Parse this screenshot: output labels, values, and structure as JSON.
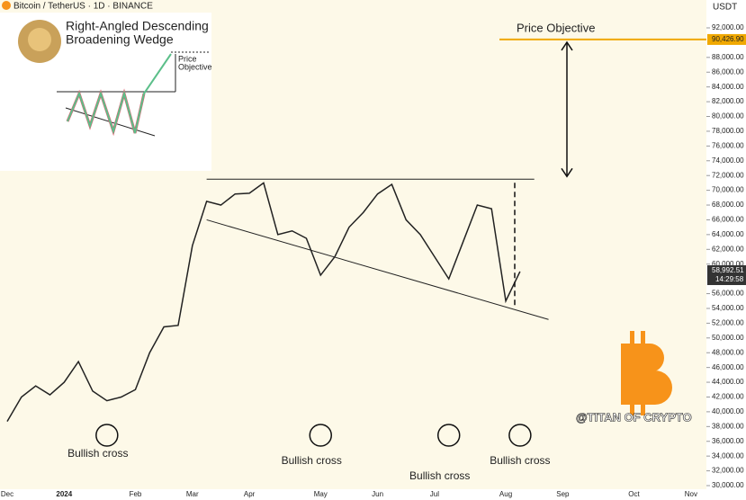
{
  "header": {
    "symbol": "Bitcoin / TetherUS · 1D · BINANCE",
    "currency": "USDT"
  },
  "inset": {
    "title_lines": [
      "Right-Angled Descending",
      "Broadening Wedge"
    ],
    "label_lines": [
      "Price",
      "Objective"
    ]
  },
  "watermark": "@TITAN OF CRYPTO",
  "chart_data": {
    "type": "line",
    "categories": [
      "Dec",
      null,
      null,
      null,
      "2024",
      null,
      null,
      null,
      null,
      "Feb",
      null,
      null,
      null,
      "Mar",
      null,
      null,
      null,
      "Apr",
      null,
      null,
      null,
      null,
      "May",
      null,
      null,
      null,
      "Jun",
      null,
      null,
      null,
      "Jul",
      null,
      null,
      null,
      null,
      "Aug",
      null,
      null,
      null,
      "Sep",
      null,
      null,
      null,
      null,
      "Oct",
      null,
      null,
      null,
      "Nov"
    ],
    "values": [
      38700,
      42000,
      43500,
      42300,
      44000,
      46800,
      42800,
      41500,
      42000,
      43000,
      48000,
      51500,
      51700,
      62500,
      68500,
      68000,
      69500,
      69600,
      71000,
      64000,
      64500,
      63500,
      58500,
      61000,
      65000,
      67000,
      69500,
      70800,
      66000,
      64000,
      61000,
      58000,
      63000,
      68000,
      67500,
      55000,
      58992.51,
      null,
      null,
      null,
      null,
      null,
      null,
      null,
      null,
      null,
      null,
      null,
      null
    ],
    "color": "#222222",
    "ylim": [
      30000,
      92000
    ],
    "yticks": [
      {
        "value": 92000,
        "label": "92,000.00"
      },
      {
        "value": 88000,
        "label": "88,000.00"
      },
      {
        "value": 86000,
        "label": "86,000.00"
      },
      {
        "value": 84000,
        "label": "84,000.00"
      },
      {
        "value": 82000,
        "label": "82,000.00"
      },
      {
        "value": 80000,
        "label": "80,000.00"
      },
      {
        "value": 78000,
        "label": "78,000.00"
      },
      {
        "value": 76000,
        "label": "76,000.00"
      },
      {
        "value": 74000,
        "label": "74,000.00"
      },
      {
        "value": 72000,
        "label": "72,000.00"
      },
      {
        "value": 70000,
        "label": "70,000.00"
      },
      {
        "value": 68000,
        "label": "68,000.00"
      },
      {
        "value": 66000,
        "label": "66,000.00"
      },
      {
        "value": 64000,
        "label": "64,000.00"
      },
      {
        "value": 62000,
        "label": "62,000.00"
      },
      {
        "value": 60000,
        "label": "60,000.00"
      },
      {
        "value": 56000,
        "label": "56,000.00"
      },
      {
        "value": 54000,
        "label": "54,000.00"
      },
      {
        "value": 52000,
        "label": "52,000.00"
      },
      {
        "value": 50000,
        "label": "50,000.00"
      },
      {
        "value": 48000,
        "label": "48,000.00"
      },
      {
        "value": 46000,
        "label": "46,000.00"
      },
      {
        "value": 44000,
        "label": "44,000.00"
      },
      {
        "value": 42000,
        "label": "42,000.00"
      },
      {
        "value": 40000,
        "label": "40,000.00"
      },
      {
        "value": 38000,
        "label": "38,000.00"
      },
      {
        "value": 36000,
        "label": "36,000.00"
      },
      {
        "value": 34000,
        "label": "34,000.00"
      },
      {
        "value": 32000,
        "label": "32,000.00"
      },
      {
        "value": 30000,
        "label": "30,000.00"
      }
    ],
    "grid": false,
    "objective": {
      "text": "Price Objective",
      "value": 90426.9,
      "label": "90,426.90",
      "color": "#f0a800"
    },
    "last_price": {
      "value": 58992.51,
      "label": "58,992.51",
      "timer": "14:29:58"
    },
    "trendlines": [
      {
        "x": [
          14,
          37
        ],
        "values": [
          71500,
          71500
        ]
      },
      {
        "x": [
          14,
          38
        ],
        "values": [
          66000,
          52500
        ]
      }
    ],
    "crosses": [
      {
        "text": "Bullish cross",
        "x": 7
      },
      {
        "text": "Bullish cross",
        "x": 22
      },
      {
        "text": "Bullish cross",
        "x": 31
      },
      {
        "text": "Bullish cross",
        "x": 36
      }
    ]
  }
}
